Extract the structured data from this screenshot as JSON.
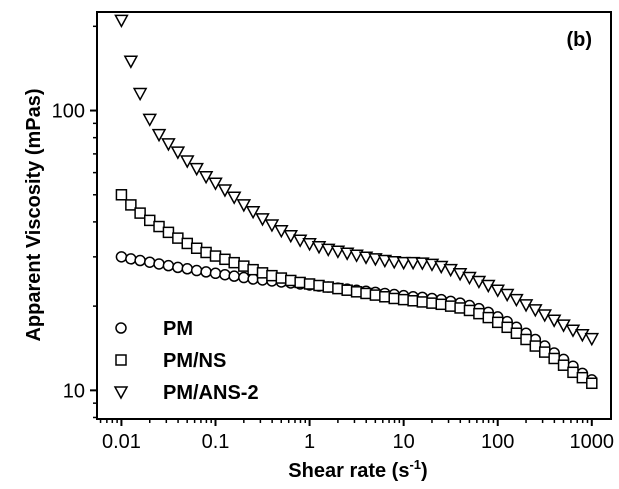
{
  "chart_data": {
    "type": "scatter",
    "panel_label": "(b)",
    "xlabel": "Shear rate (s",
    "xlabel_sup": "-1",
    "xlabel_end": ")",
    "ylabel": "Apparent Viscosity (mPas)",
    "xscale": "log",
    "yscale": "log",
    "xlim": [
      0.0055,
      1600
    ],
    "ylim": [
      7.9,
      225
    ],
    "xticks": [
      {
        "value": 0.01,
        "label": "0.01"
      },
      {
        "value": 0.1,
        "label": "0.1"
      },
      {
        "value": 1,
        "label": "1"
      },
      {
        "value": 10,
        "label": "10"
      },
      {
        "value": 100,
        "label": "100"
      },
      {
        "value": 1000,
        "label": "1000"
      }
    ],
    "yticks": [
      {
        "value": 10,
        "label": "10"
      },
      {
        "value": 100,
        "label": "100"
      }
    ],
    "legend_position": "bottom-left",
    "series": [
      {
        "name": "PM",
        "marker": "circle",
        "points": [
          [
            0.01,
            30
          ],
          [
            0.0126,
            29.5
          ],
          [
            0.0158,
            29.1
          ],
          [
            0.02,
            28.7
          ],
          [
            0.0251,
            28.3
          ],
          [
            0.0316,
            27.9
          ],
          [
            0.0398,
            27.5
          ],
          [
            0.0501,
            27.2
          ],
          [
            0.0631,
            26.8
          ],
          [
            0.0794,
            26.5
          ],
          [
            0.1,
            26.2
          ],
          [
            0.126,
            25.9
          ],
          [
            0.158,
            25.6
          ],
          [
            0.2,
            25.3
          ],
          [
            0.251,
            25
          ],
          [
            0.316,
            24.8
          ],
          [
            0.398,
            24.6
          ],
          [
            0.501,
            24.4
          ],
          [
            0.631,
            24.2
          ],
          [
            0.794,
            24
          ],
          [
            1,
            23.8
          ],
          [
            1.26,
            23.6
          ],
          [
            1.58,
            23.4
          ],
          [
            2,
            23.2
          ],
          [
            2.51,
            23
          ],
          [
            3.16,
            22.8
          ],
          [
            3.98,
            22.6
          ],
          [
            5.01,
            22.4
          ],
          [
            6.31,
            22.2
          ],
          [
            7.94,
            22
          ],
          [
            10,
            21.8
          ],
          [
            12.6,
            21.6
          ],
          [
            15.8,
            21.5
          ],
          [
            20,
            21.3
          ],
          [
            25.1,
            21.1
          ],
          [
            31.6,
            20.8
          ],
          [
            39.8,
            20.5
          ],
          [
            50.1,
            20.1
          ],
          [
            63.1,
            19.6
          ],
          [
            79.4,
            19
          ],
          [
            100,
            18.3
          ],
          [
            126,
            17.6
          ],
          [
            158,
            16.8
          ],
          [
            200,
            16
          ],
          [
            251,
            15.2
          ],
          [
            316,
            14.4
          ],
          [
            398,
            13.6
          ],
          [
            501,
            12.9
          ],
          [
            631,
            12.2
          ],
          [
            794,
            11.5
          ],
          [
            1000,
            10.9
          ]
        ]
      },
      {
        "name": "PM/NS",
        "marker": "square",
        "points": [
          [
            0.01,
            50
          ],
          [
            0.0126,
            46
          ],
          [
            0.0158,
            43
          ],
          [
            0.02,
            40.5
          ],
          [
            0.0251,
            38.5
          ],
          [
            0.0316,
            36.7
          ],
          [
            0.0398,
            35
          ],
          [
            0.0501,
            33.5
          ],
          [
            0.0631,
            32.2
          ],
          [
            0.0794,
            31.1
          ],
          [
            0.1,
            30.2
          ],
          [
            0.126,
            29.4
          ],
          [
            0.158,
            28.6
          ],
          [
            0.2,
            27.8
          ],
          [
            0.251,
            27
          ],
          [
            0.316,
            26.3
          ],
          [
            0.398,
            25.7
          ],
          [
            0.501,
            25.2
          ],
          [
            0.631,
            24.7
          ],
          [
            0.794,
            24.3
          ],
          [
            1,
            24
          ],
          [
            1.26,
            23.7
          ],
          [
            1.58,
            23.4
          ],
          [
            2,
            23.1
          ],
          [
            2.51,
            22.8
          ],
          [
            3.16,
            22.5
          ],
          [
            3.98,
            22.2
          ],
          [
            5.01,
            21.9
          ],
          [
            6.31,
            21.6
          ],
          [
            7.94,
            21.3
          ],
          [
            10,
            21.1
          ],
          [
            12.6,
            20.9
          ],
          [
            15.8,
            20.7
          ],
          [
            20,
            20.5
          ],
          [
            25.1,
            20.3
          ],
          [
            31.6,
            20
          ],
          [
            39.8,
            19.7
          ],
          [
            50.1,
            19.3
          ],
          [
            63.1,
            18.8
          ],
          [
            79.4,
            18.2
          ],
          [
            100,
            17.5
          ],
          [
            126,
            16.8
          ],
          [
            158,
            16
          ],
          [
            200,
            15.2
          ],
          [
            251,
            14.4
          ],
          [
            316,
            13.7
          ],
          [
            398,
            13
          ],
          [
            501,
            12.3
          ],
          [
            631,
            11.6
          ],
          [
            794,
            11.1
          ],
          [
            1000,
            10.6
          ]
        ]
      },
      {
        "name": "PM/ANS-2",
        "marker": "triangle-down",
        "points": [
          [
            0.01,
            210
          ],
          [
            0.0126,
            150
          ],
          [
            0.0158,
            115
          ],
          [
            0.02,
            93
          ],
          [
            0.0251,
            82
          ],
          [
            0.0316,
            76
          ],
          [
            0.0398,
            71
          ],
          [
            0.0501,
            66
          ],
          [
            0.0631,
            62
          ],
          [
            0.0794,
            58
          ],
          [
            0.1,
            55
          ],
          [
            0.126,
            52
          ],
          [
            0.158,
            49
          ],
          [
            0.2,
            46
          ],
          [
            0.251,
            43.5
          ],
          [
            0.316,
            41
          ],
          [
            0.398,
            39
          ],
          [
            0.501,
            37.2
          ],
          [
            0.631,
            35.7
          ],
          [
            0.794,
            34.4
          ],
          [
            1,
            33.4
          ],
          [
            1.26,
            32.6
          ],
          [
            1.58,
            31.9
          ],
          [
            2,
            31.4
          ],
          [
            2.51,
            30.9
          ],
          [
            3.16,
            30.4
          ],
          [
            3.98,
            29.9
          ],
          [
            5.01,
            29.5
          ],
          [
            6.31,
            29.1
          ],
          [
            7.94,
            28.8
          ],
          [
            10,
            28.6
          ],
          [
            12.6,
            28.6
          ],
          [
            15.8,
            28.5
          ],
          [
            20,
            28.2
          ],
          [
            25.1,
            27.7
          ],
          [
            31.6,
            27
          ],
          [
            39.8,
            26.1
          ],
          [
            50.1,
            25.3
          ],
          [
            63.1,
            24.5
          ],
          [
            79.4,
            23.7
          ],
          [
            100,
            22.8
          ],
          [
            126,
            22
          ],
          [
            158,
            21.1
          ],
          [
            200,
            20.2
          ],
          [
            251,
            19.4
          ],
          [
            316,
            18.6
          ],
          [
            398,
            17.8
          ],
          [
            501,
            17.1
          ],
          [
            631,
            16.4
          ],
          [
            794,
            15.8
          ],
          [
            1000,
            15.3
          ]
        ]
      }
    ]
  }
}
